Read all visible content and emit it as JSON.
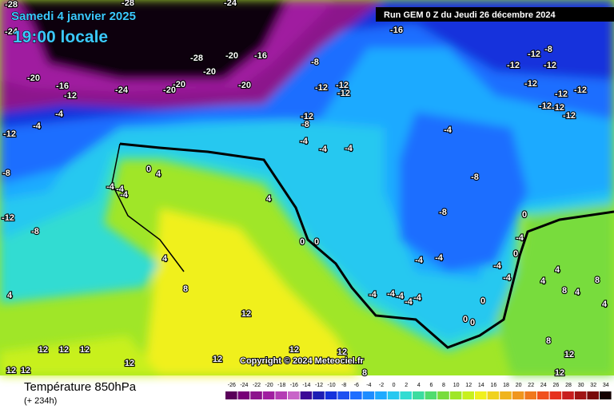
{
  "header": {
    "date": "Samedi 4 janvier 2025",
    "time": "19:00 locale",
    "run": "Run GEM 0 Z du Jeudi 26 décembre 2024"
  },
  "footer": {
    "parameter": "Température 850hPa",
    "lead": "(+ 234h)",
    "copyright": "Copyright © 2024 Meteociel.fr"
  },
  "legend": {
    "values": [
      -26,
      -24,
      -22,
      -20,
      -18,
      -16,
      -14,
      -12,
      -10,
      -8,
      -6,
      -4,
      -2,
      0,
      2,
      4,
      6,
      8,
      10,
      12,
      14,
      16,
      18,
      20,
      22,
      24,
      26,
      28,
      30,
      32,
      34
    ],
    "colors": [
      "#5a005a",
      "#780078",
      "#8c148c",
      "#a01ea0",
      "#b43cb4",
      "#c864c8",
      "#3c0a96",
      "#1e1eb4",
      "#1432dc",
      "#1e50f0",
      "#1e6eff",
      "#1e8cff",
      "#1eaaff",
      "#28c8f0",
      "#32dcd2",
      "#3cdca0",
      "#50dc6e",
      "#78dc3c",
      "#a0e628",
      "#c8f01e",
      "#f0f01e",
      "#f0d21e",
      "#f0b41e",
      "#f0961e",
      "#f0781e",
      "#f0501e",
      "#e6321e",
      "#c81e1e",
      "#a01414",
      "#780a0a",
      "#140000"
    ]
  },
  "map_labels": [
    "-28",
    "-28",
    "-24",
    "-24",
    "-28",
    "-20",
    "-16",
    "-20",
    "-20",
    "-16",
    "-12",
    "-24",
    "-20",
    "-20",
    "-20",
    "-16",
    "-8",
    "-12",
    "-12",
    "-12",
    "-8",
    "-12",
    "-12",
    "-12",
    "-12",
    "-12",
    "-12",
    "-12",
    "-12",
    "-12",
    "-12",
    "-8",
    "-4",
    "-4",
    "-12",
    "-4",
    "-4",
    "-4",
    "-4",
    "-8",
    "0",
    "4",
    "-8",
    "-4",
    "-4",
    "-4",
    "4",
    "-12",
    "-8",
    "0",
    "-8",
    "0",
    "0",
    "-4",
    "4",
    "-4",
    "-4",
    "0",
    "-4",
    "4",
    "4",
    "-4",
    "8",
    "8",
    "-4",
    "-4",
    "-4",
    "-4",
    "-4",
    "0",
    "8",
    "4",
    "4",
    "4",
    "12",
    "0",
    "0",
    "12",
    "12",
    "12",
    "12",
    "12",
    "12",
    "12",
    "12",
    "12",
    "12",
    "8",
    "12",
    "8"
  ]
}
